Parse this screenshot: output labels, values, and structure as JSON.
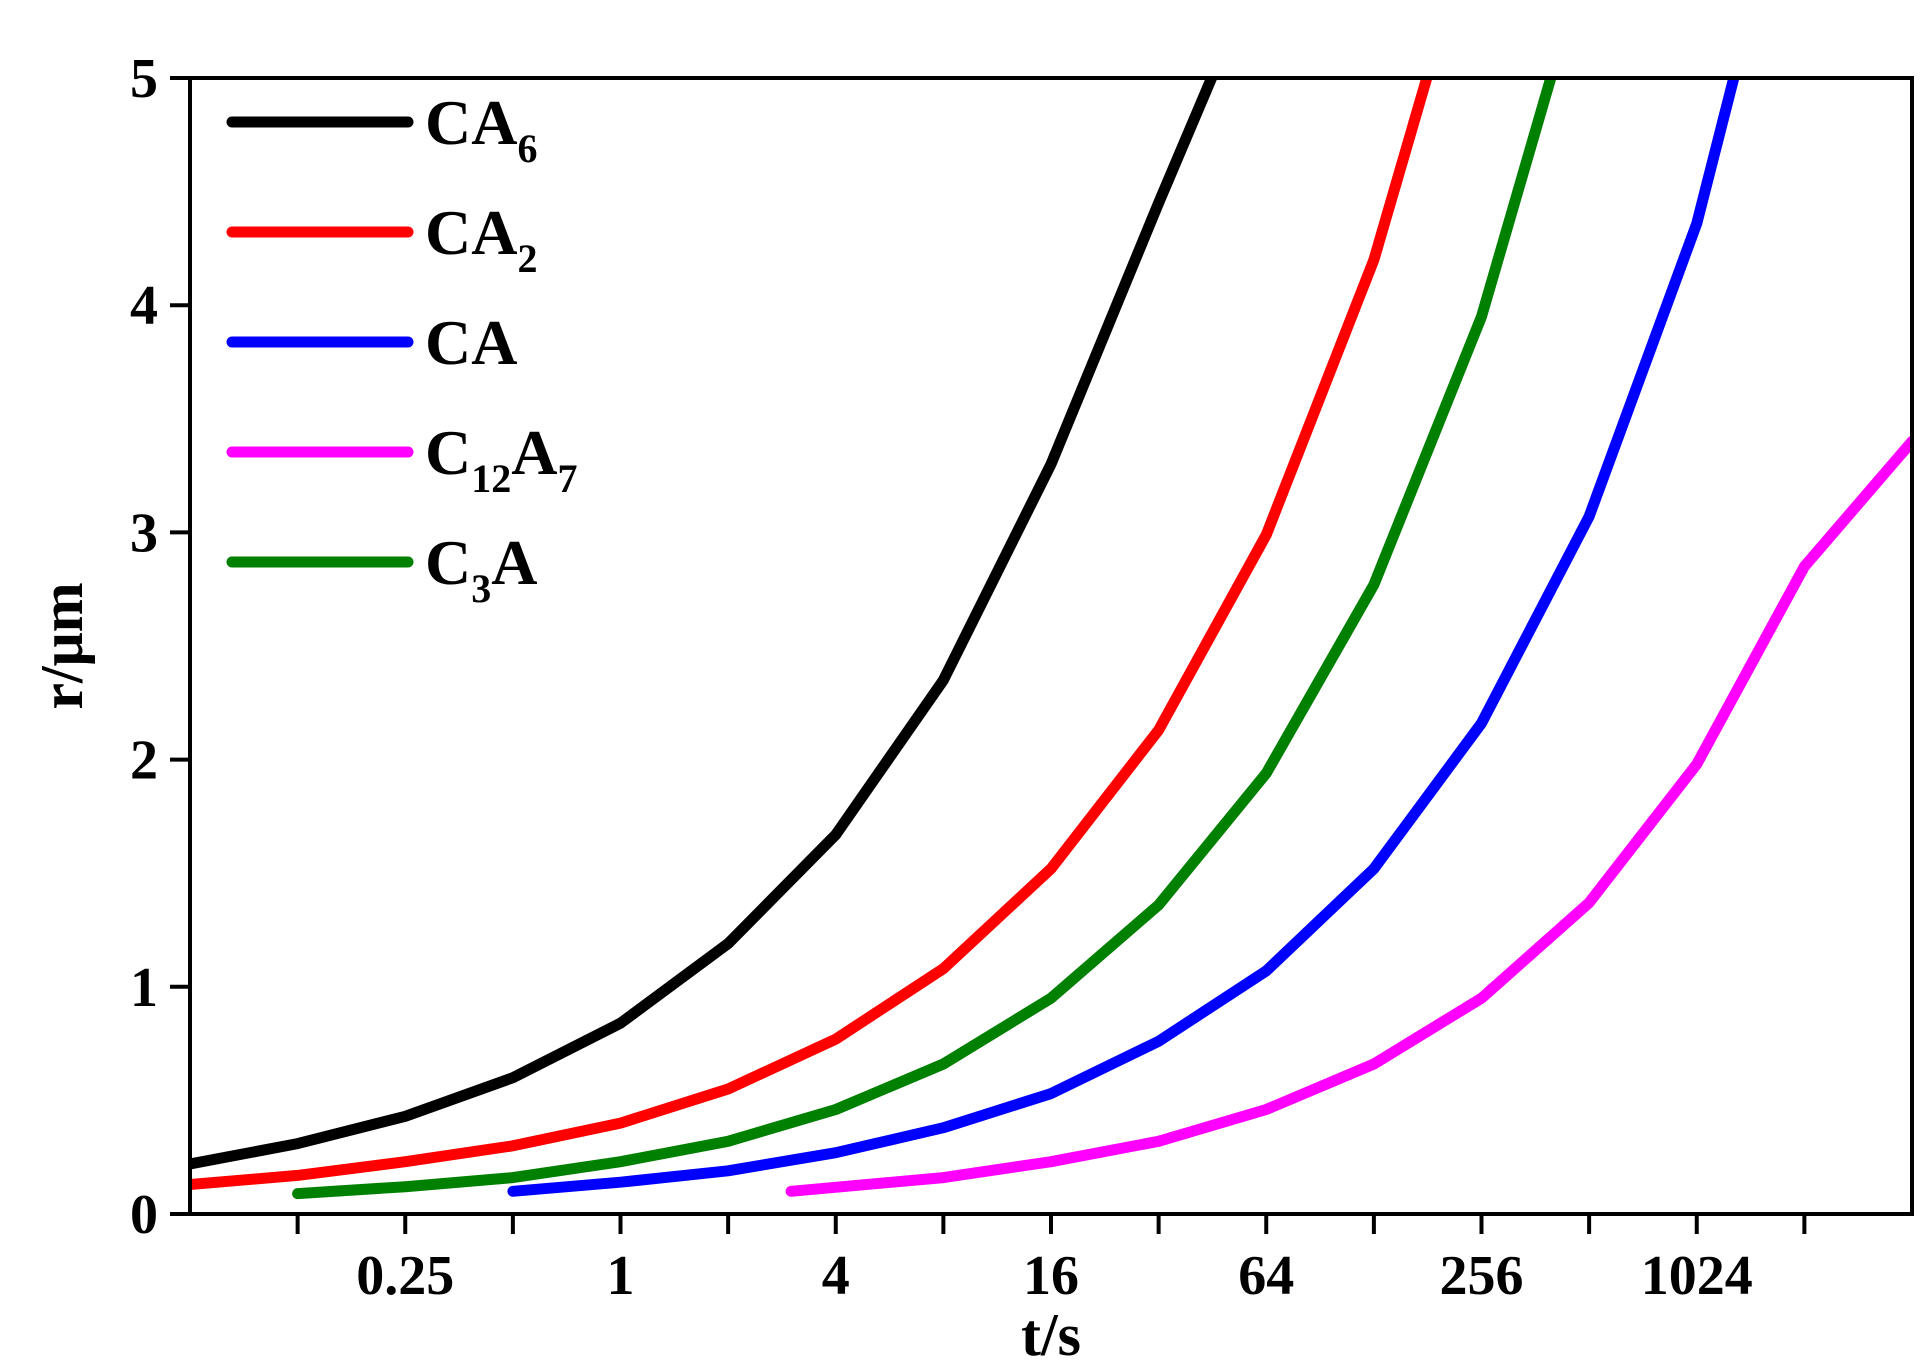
{
  "chart_data": {
    "type": "line",
    "xlabel": "t/s",
    "ylabel": "r/μm",
    "x_scale": "log2",
    "xlim": [
      0.0625,
      4096
    ],
    "ylim": [
      0,
      5
    ],
    "x_ticks": [
      0.125,
      0.25,
      0.5,
      1,
      2,
      4,
      8,
      16,
      32,
      64,
      128,
      256,
      512,
      1024,
      2048
    ],
    "x_tick_labels": [
      {
        "value": 0.25,
        "label": "0.25"
      },
      {
        "value": 1,
        "label": "1"
      },
      {
        "value": 4,
        "label": "4"
      },
      {
        "value": 16,
        "label": "16"
      },
      {
        "value": 64,
        "label": "64"
      },
      {
        "value": 256,
        "label": "256"
      },
      {
        "value": 1024,
        "label": "1024"
      }
    ],
    "y_ticks": [
      0,
      1,
      2,
      3,
      4,
      5
    ],
    "y_tick_labels": [
      "0",
      "1",
      "2",
      "3",
      "4",
      "5"
    ],
    "grid": false,
    "legend_position": "top-left",
    "series": [
      {
        "name": "CA6",
        "label_main": "CA",
        "label_sub": "6",
        "color": "#000000",
        "points": [
          [
            0.0625,
            0.22
          ],
          [
            0.125,
            0.31
          ],
          [
            0.25,
            0.43
          ],
          [
            0.5,
            0.6
          ],
          [
            1,
            0.84
          ],
          [
            2,
            1.19
          ],
          [
            4,
            1.67
          ],
          [
            8,
            2.35
          ],
          [
            16,
            3.3
          ],
          [
            32,
            4.45
          ],
          [
            45,
            5.0
          ]
        ]
      },
      {
        "name": "CA2",
        "label_main": "CA",
        "label_sub": "2",
        "color": "#ff0000",
        "points": [
          [
            0.0625,
            0.13
          ],
          [
            0.125,
            0.17
          ],
          [
            0.25,
            0.23
          ],
          [
            0.5,
            0.3
          ],
          [
            1,
            0.4
          ],
          [
            2,
            0.55
          ],
          [
            4,
            0.77
          ],
          [
            8,
            1.08
          ],
          [
            16,
            1.52
          ],
          [
            32,
            2.13
          ],
          [
            64,
            2.99
          ],
          [
            128,
            4.2
          ],
          [
            180,
            5.0
          ]
        ]
      },
      {
        "name": "CA",
        "label_main": "CA",
        "label_sub": "",
        "color": "#0000ff",
        "points": [
          [
            0.5,
            0.1
          ],
          [
            1,
            0.14
          ],
          [
            2,
            0.19
          ],
          [
            4,
            0.27
          ],
          [
            8,
            0.38
          ],
          [
            16,
            0.53
          ],
          [
            32,
            0.76
          ],
          [
            64,
            1.07
          ],
          [
            128,
            1.52
          ],
          [
            256,
            2.16
          ],
          [
            512,
            3.07
          ],
          [
            1024,
            4.36
          ],
          [
            1300,
            5.0
          ]
        ]
      },
      {
        "name": "C12A7",
        "label_main": "C",
        "label_sub": "12",
        "label_tail": "A",
        "label_sub2": "7",
        "color": "#ff00ff",
        "points": [
          [
            3,
            0.1
          ],
          [
            8,
            0.16
          ],
          [
            16,
            0.23
          ],
          [
            32,
            0.32
          ],
          [
            64,
            0.46
          ],
          [
            128,
            0.66
          ],
          [
            256,
            0.95
          ],
          [
            512,
            1.37
          ],
          [
            1024,
            1.98
          ],
          [
            2048,
            2.85
          ],
          [
            4096,
            3.4
          ]
        ]
      },
      {
        "name": "C3A",
        "label_main": "C",
        "label_sub": "3",
        "label_tail": "A",
        "label_sub2": "",
        "color": "#008000",
        "points": [
          [
            0.125,
            0.09
          ],
          [
            0.25,
            0.12
          ],
          [
            0.5,
            0.16
          ],
          [
            1,
            0.23
          ],
          [
            2,
            0.32
          ],
          [
            4,
            0.46
          ],
          [
            8,
            0.66
          ],
          [
            16,
            0.95
          ],
          [
            32,
            1.36
          ],
          [
            64,
            1.94
          ],
          [
            128,
            2.77
          ],
          [
            256,
            3.95
          ],
          [
            400,
            5.0
          ]
        ]
      }
    ]
  }
}
